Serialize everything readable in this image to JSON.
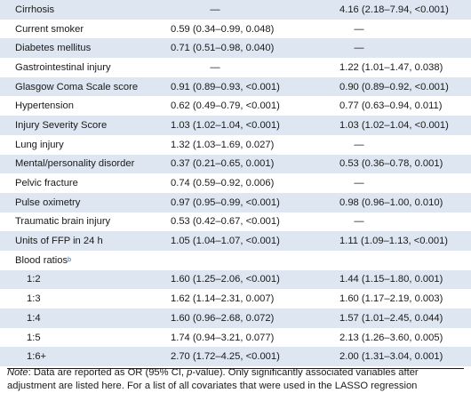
{
  "rows": [
    {
      "label": "Cirrhosis",
      "c2": "—",
      "c3": "4.16 (2.18–7.94, <0.001)",
      "shade": true,
      "c2dash": true,
      "c3dash": false
    },
    {
      "label": "Current smoker",
      "c2": "0.59 (0.34–0.99, 0.048)",
      "c3": "—",
      "shade": false,
      "c2dash": false,
      "c3dash": true
    },
    {
      "label": "Diabetes mellitus",
      "c2": "0.71 (0.51–0.98, 0.040)",
      "c3": "—",
      "shade": true,
      "c2dash": false,
      "c3dash": true
    },
    {
      "label": "Gastrointestinal injury",
      "c2": "—",
      "c3": "1.22 (1.01–1.47, 0.038)",
      "shade": false,
      "c2dash": true,
      "c3dash": false
    },
    {
      "label": "Glasgow Coma Scale score",
      "c2": "0.91 (0.89–0.93, <0.001)",
      "c3": "0.90 (0.89–0.92, <0.001)",
      "shade": true,
      "c2dash": false,
      "c3dash": false
    },
    {
      "label": "Hypertension",
      "c2": "0.62 (0.49–0.79, <0.001)",
      "c3": "0.77 (0.63–0.94, 0.011)",
      "shade": false,
      "c2dash": false,
      "c3dash": false
    },
    {
      "label": "Injury Severity Score",
      "c2": "1.03 (1.02–1.04, <0.001)",
      "c3": "1.03 (1.02–1.04, <0.001)",
      "shade": true,
      "c2dash": false,
      "c3dash": false
    },
    {
      "label": "Lung injury",
      "c2": "1.32 (1.03–1.69, 0.027)",
      "c3": "—",
      "shade": false,
      "c2dash": false,
      "c3dash": true
    },
    {
      "label": "Mental/personality disorder",
      "c2": "0.37 (0.21–0.65, 0.001)",
      "c3": "0.53 (0.36–0.78, 0.001)",
      "shade": true,
      "c2dash": false,
      "c3dash": false
    },
    {
      "label": "Pelvic fracture",
      "c2": "0.74 (0.59–0.92, 0.006)",
      "c3": "—",
      "shade": false,
      "c2dash": false,
      "c3dash": true
    },
    {
      "label": "Pulse oximetry",
      "c2": "0.97 (0.95–0.99, <0.001)",
      "c3": "0.98 (0.96–1.00, 0.010)",
      "shade": true,
      "c2dash": false,
      "c3dash": false
    },
    {
      "label": "Traumatic brain injury",
      "c2": "0.53 (0.42–0.67, <0.001)",
      "c3": "—",
      "shade": false,
      "c2dash": false,
      "c3dash": true
    },
    {
      "label": "Units of FFP in 24 h",
      "c2": "1.05 (1.04–1.07, <0.001)",
      "c3": "1.11 (1.09–1.13, <0.001)",
      "shade": true,
      "c2dash": false,
      "c3dash": false
    }
  ],
  "blood_ratios": {
    "label": "Blood ratios",
    "footnote_marker": "b",
    "items": [
      {
        "label": "1:2",
        "c2": "1.60 (1.25–2.06, <0.001)",
        "c3": "1.44 (1.15–1.80, 0.001)",
        "shade": true
      },
      {
        "label": "1:3",
        "c2": "1.62 (1.14–2.31, 0.007)",
        "c3": "1.60 (1.17–2.19, 0.003)",
        "shade": false
      },
      {
        "label": "1:4",
        "c2": "1.60 (0.96–2.68, 0.072)",
        "c3": "1.57 (1.01–2.45, 0.044)",
        "shade": true
      },
      {
        "label": "1:5",
        "c2": "1.74 (0.94–3.21, 0.077)",
        "c3": "2.13 (1.26–3.60, 0.005)",
        "shade": false
      },
      {
        "label": "1:6+",
        "c2": "2.70 (1.72–4.25, <0.001)",
        "c3": "2.00 (1.31–3.04, 0.001)",
        "shade": true
      }
    ]
  },
  "note": {
    "prefix": "Note",
    "text_before": ": Data are reported as OR (95% CI, ",
    "p_italic": "p",
    "text_after": "-value). Only significantly associated variables after",
    "line2": "adjustment are listed here. For a list of all covariates that were used in the LASSO regression"
  }
}
